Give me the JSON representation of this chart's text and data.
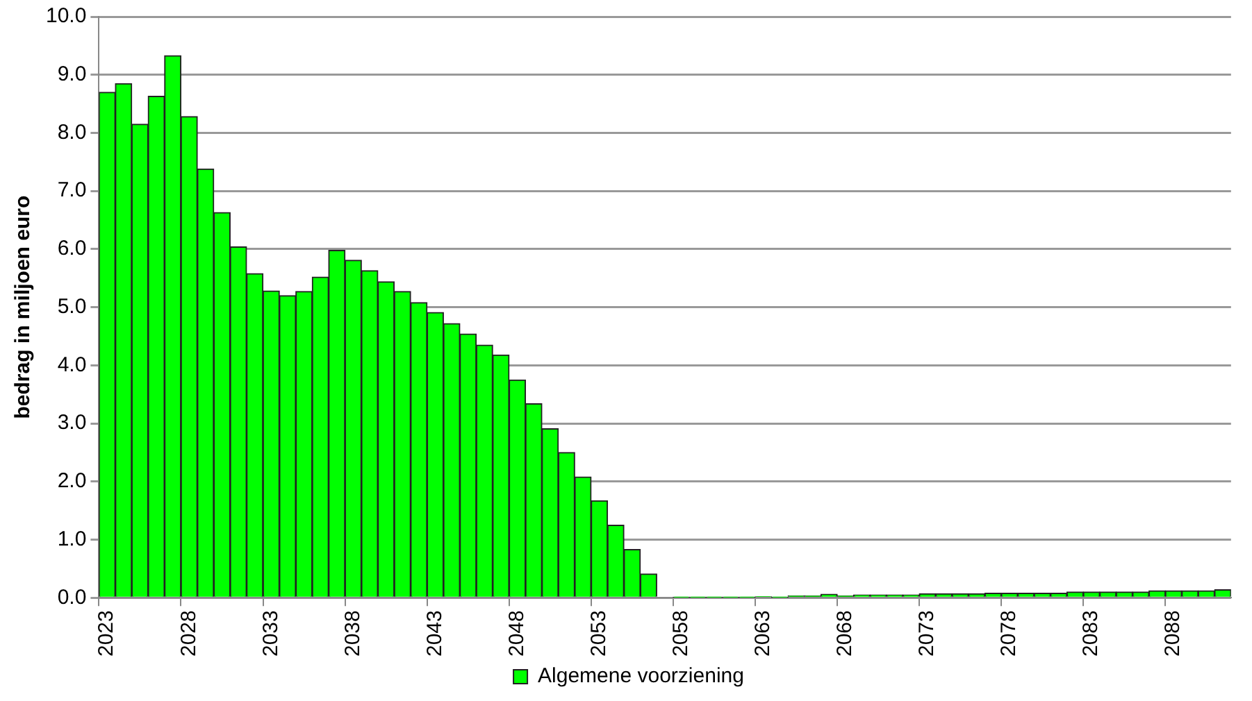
{
  "chart_data": {
    "type": "bar",
    "ylabel": "bedrag in miljoen euro",
    "categories": [
      "2023",
      null,
      null,
      null,
      null,
      "2028",
      null,
      null,
      null,
      null,
      "2033",
      null,
      null,
      null,
      null,
      "2038",
      null,
      null,
      null,
      null,
      "2043",
      null,
      null,
      null,
      null,
      "2048",
      null,
      null,
      null,
      null,
      "2053",
      null,
      null,
      null,
      null,
      "2058",
      null,
      null,
      null,
      null,
      "2063",
      null,
      null,
      null,
      null,
      "2068",
      null,
      null,
      null,
      null,
      "2073",
      null,
      null,
      null,
      null,
      "2078",
      null,
      null,
      null,
      null,
      "2083",
      null,
      null,
      null,
      null,
      "2088",
      null,
      null,
      null
    ],
    "series": [
      {
        "name": "Algemene voorziening",
        "color": "#00ff00",
        "values": [
          8.7,
          8.85,
          8.15,
          8.63,
          9.33,
          8.28,
          7.38,
          6.63,
          6.04,
          5.58,
          5.28,
          5.2,
          5.27,
          5.52,
          5.98,
          5.81,
          5.63,
          5.44,
          5.27,
          5.08,
          4.91,
          4.72,
          4.54,
          4.35,
          4.18,
          3.75,
          3.34,
          2.91,
          2.5,
          2.08,
          1.67,
          1.25,
          0.83,
          0.41,
          0,
          0.01,
          0.01,
          0.01,
          0.01,
          0.01,
          0.02,
          0.01,
          0.03,
          0.03,
          0.06,
          0.03,
          0.05,
          0.05,
          0.05,
          0.05,
          0.07,
          0.07,
          0.07,
          0.07,
          0.08,
          0.08,
          0.08,
          0.08,
          0.08,
          0.1,
          0.1,
          0.1,
          0.1,
          0.1,
          0.12,
          0.12,
          0.12,
          0.12,
          0.14
        ]
      }
    ],
    "ylim": [
      0,
      10
    ],
    "yticks": [
      {
        "value": 0,
        "label": "0.0"
      },
      {
        "value": 1,
        "label": "1.0"
      },
      {
        "value": 2,
        "label": "2.0"
      },
      {
        "value": 3,
        "label": "3.0"
      },
      {
        "value": 4,
        "label": "4.0"
      },
      {
        "value": 5,
        "label": "5.0"
      },
      {
        "value": 6,
        "label": "6.0"
      },
      {
        "value": 7,
        "label": "7.0"
      },
      {
        "value": 8,
        "label": "8.0"
      },
      {
        "value": 9,
        "label": "9.0"
      },
      {
        "value": 10,
        "label": "10.0"
      }
    ],
    "grid": "y",
    "legend": "bottom"
  }
}
